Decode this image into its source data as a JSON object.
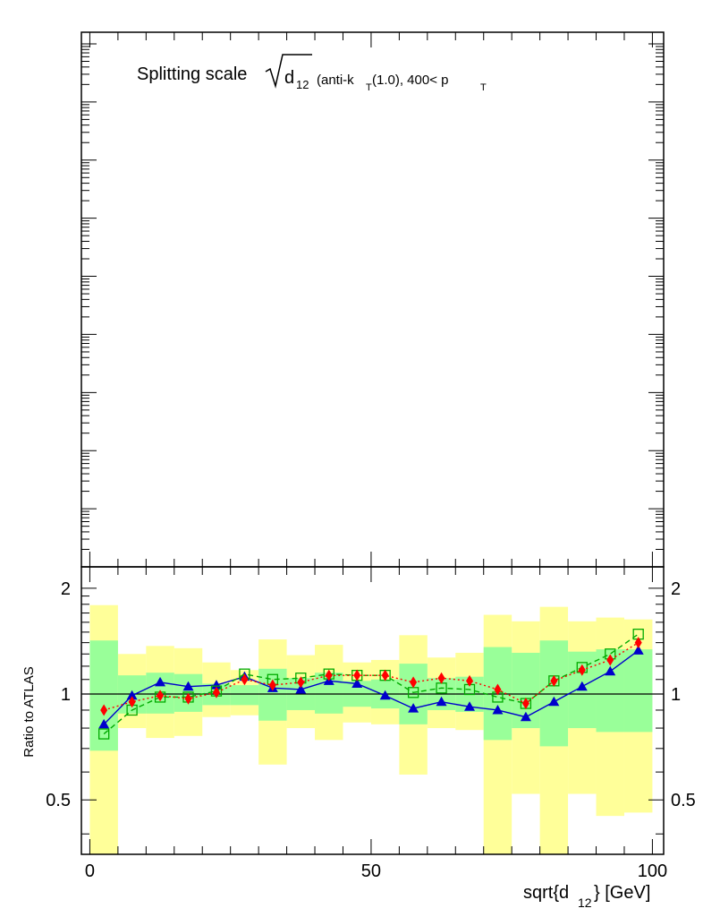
{
  "upper_panel": {
    "title_main": "Splitting scale",
    "title_d": "d",
    "title_d_sub": "12",
    "title_tail_a": "(anti-k",
    "title_tail_a_sub": "T",
    "title_tail_b": "(1.0), 400< p",
    "title_tail_b_sub": "T"
  },
  "chart_data": {
    "type": "line",
    "xlabel": "sqrt{d",
    "xlabel_sub": "12",
    "xlabel_tail": "} [GeV]",
    "ylabel": "Ratio to ATLAS",
    "xlim": [
      -1.5,
      102
    ],
    "ylim": [
      0.35,
      2.3
    ],
    "y_scale": "log",
    "x_ticks": [
      0,
      50,
      100
    ],
    "x_tick_labels": [
      "0",
      "50",
      "100"
    ],
    "y_ticks": [
      0.5,
      1,
      2
    ],
    "y_tick_labels": [
      "0.5",
      "1",
      "2"
    ],
    "reference_line": 1,
    "bins": [
      [
        0,
        5
      ],
      [
        5,
        10
      ],
      [
        10,
        15
      ],
      [
        15,
        20
      ],
      [
        20,
        25
      ],
      [
        25,
        30
      ],
      [
        30,
        35
      ],
      [
        35,
        40
      ],
      [
        40,
        45
      ],
      [
        45,
        50
      ],
      [
        50,
        55
      ],
      [
        55,
        60
      ],
      [
        60,
        65
      ],
      [
        65,
        70
      ],
      [
        70,
        75
      ],
      [
        75,
        80
      ],
      [
        80,
        85
      ],
      [
        85,
        90
      ],
      [
        90,
        95
      ],
      [
        95,
        100
      ]
    ],
    "bands": [
      {
        "name": "",
        "color": "#ffff99",
        "low": [
          0.35,
          0.8,
          0.75,
          0.76,
          0.86,
          0.87,
          0.63,
          0.8,
          0.74,
          0.83,
          0.82,
          0.59,
          0.8,
          0.79,
          0.35,
          0.52,
          0.35,
          0.52,
          0.45,
          0.46
        ],
        "high": [
          1.79,
          1.3,
          1.37,
          1.35,
          1.23,
          1.17,
          1.43,
          1.29,
          1.38,
          1.23,
          1.25,
          1.47,
          1.27,
          1.31,
          1.68,
          1.61,
          1.77,
          1.61,
          1.65,
          1.63
        ]
      },
      {
        "name": "",
        "color": "#99ff99",
        "low": [
          0.69,
          0.88,
          0.88,
          0.89,
          0.93,
          0.93,
          0.84,
          0.9,
          0.88,
          0.92,
          0.91,
          0.82,
          0.9,
          0.89,
          0.74,
          0.8,
          0.71,
          0.8,
          0.78,
          0.78
        ],
        "high": [
          1.42,
          1.13,
          1.15,
          1.14,
          1.07,
          1.06,
          1.18,
          1.11,
          1.15,
          1.09,
          1.1,
          1.22,
          1.11,
          1.12,
          1.36,
          1.31,
          1.42,
          1.32,
          1.34,
          1.34
        ]
      }
    ],
    "x": [
      2.5,
      7.5,
      12.5,
      17.5,
      22.5,
      27.5,
      32.5,
      37.5,
      42.5,
      47.5,
      52.5,
      57.5,
      62.5,
      67.5,
      72.5,
      77.5,
      82.5,
      87.5,
      92.5,
      97.5
    ],
    "series": [
      {
        "name": "",
        "color": "#0000cc",
        "marker": "triangle",
        "dash": "",
        "values": [
          0.82,
          0.99,
          1.08,
          1.05,
          1.06,
          1.12,
          1.04,
          1.03,
          1.09,
          1.07,
          0.99,
          0.91,
          0.95,
          0.92,
          0.9,
          0.86,
          0.95,
          1.05,
          1.16,
          1.33
        ]
      },
      {
        "name": "",
        "color": "#00aa00",
        "marker": "open-square",
        "dash": "6,4",
        "values": [
          0.77,
          0.9,
          0.98,
          0.98,
          1.02,
          1.14,
          1.1,
          1.11,
          1.14,
          1.13,
          1.13,
          1.01,
          1.04,
          1.03,
          0.98,
          0.94,
          1.09,
          1.19,
          1.3,
          1.48
        ]
      },
      {
        "name": "",
        "color": "#ff0000",
        "marker": "diamond",
        "dash": "2,3",
        "values": [
          0.9,
          0.95,
          0.99,
          0.97,
          1.01,
          1.1,
          1.06,
          1.08,
          1.13,
          1.13,
          1.13,
          1.08,
          1.11,
          1.09,
          1.03,
          0.94,
          1.09,
          1.17,
          1.25,
          1.4
        ]
      }
    ]
  }
}
